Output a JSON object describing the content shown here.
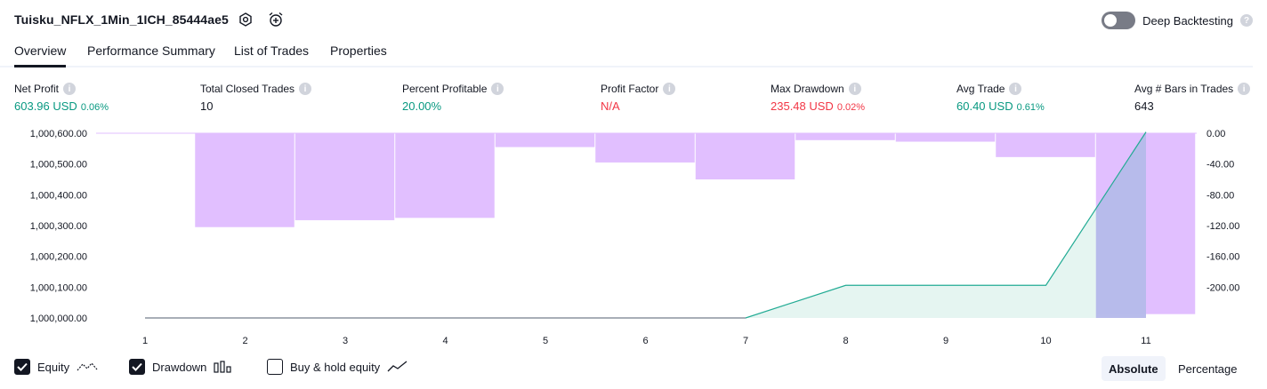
{
  "header": {
    "title": "Tuisku_NFLX_1Min_1ICH_85444ae5",
    "deep_backtesting_label": "Deep Backtesting",
    "deep_backtesting_on": false,
    "help_glyph": "?"
  },
  "tabs": [
    {
      "label": "Overview",
      "active": true
    },
    {
      "label": "Performance Summary",
      "active": false
    },
    {
      "label": "List of Trades",
      "active": false
    },
    {
      "label": "Properties",
      "active": false
    }
  ],
  "metrics": [
    {
      "label": "Net Profit",
      "value": "603.96 USD",
      "pct": "0.06%",
      "color": "#089981"
    },
    {
      "label": "Total Closed Trades",
      "value": "10",
      "pct": "",
      "color": "#131722"
    },
    {
      "label": "Percent Profitable",
      "value": "20.00%",
      "pct": "",
      "color": "#089981"
    },
    {
      "label": "Profit Factor",
      "value": "N/A",
      "pct": "",
      "color": "#f23645"
    },
    {
      "label": "Max Drawdown",
      "value": "235.48 USD",
      "pct": "0.02%",
      "color": "#f23645"
    },
    {
      "label": "Avg Trade",
      "value": "60.40 USD",
      "pct": "0.61%",
      "color": "#089981"
    },
    {
      "label": "Avg # Bars in Trades",
      "value": "643",
      "pct": "",
      "color": "#131722"
    }
  ],
  "info_glyph": "i",
  "chart_data": {
    "type": "area",
    "x": [
      1,
      2,
      3,
      4,
      5,
      6,
      7,
      8,
      9,
      10,
      11
    ],
    "left_ticks": [
      "1,000,600.00",
      "1,000,500.00",
      "1,000,400.00",
      "1,000,300.00",
      "1,000,200.00",
      "1,000,100.00",
      "1,000,000.00"
    ],
    "right_ticks": [
      "0.00",
      "-40.00",
      "-80.00",
      "-120.00",
      "-160.00",
      "-200.00"
    ],
    "left_ylim": [
      1000000,
      1000600
    ],
    "right_ylim": [
      -240,
      0
    ],
    "series": [
      {
        "name": "Equity",
        "kind": "line-area",
        "color": "#22ab94",
        "fill": "#e0f3ef",
        "x": [
          1,
          7,
          8,
          10,
          11
        ],
        "values": [
          1000000,
          1000000,
          1000106,
          1000106,
          1000604
        ]
      },
      {
        "name": "Drawdown",
        "kind": "bars",
        "color": "#e1bfff",
        "x": [
          2,
          3,
          4,
          5,
          6,
          7,
          8,
          9,
          10,
          11
        ],
        "values": [
          -122,
          -113,
          -110,
          -18,
          -38,
          -60,
          -9,
          -11,
          -31,
          -235
        ]
      }
    ],
    "buy_hold": {
      "name": "Buy & hold equity",
      "color": "#b2b5be",
      "y": 1000000
    }
  },
  "footer": {
    "equity_label": "Equity",
    "drawdown_label": "Drawdown",
    "buyhold_label": "Buy & hold equity",
    "equity_checked": true,
    "drawdown_checked": true,
    "buyhold_checked": false,
    "absolute_label": "Absolute",
    "percentage_label": "Percentage",
    "absolute_active": true
  }
}
